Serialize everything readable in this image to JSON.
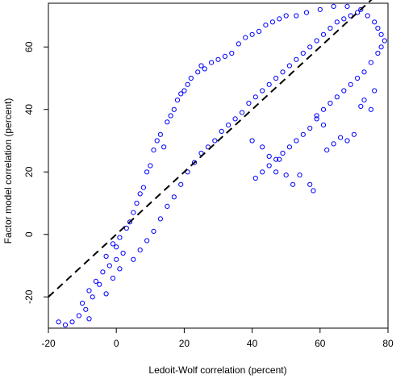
{
  "chart_data": {
    "type": "scatter",
    "title": "",
    "xlabel": "Ledoit-Wolf correlation (percent)",
    "ylabel": "Factor model correlation (percent)",
    "xlim": [
      -20,
      80
    ],
    "ylim": [
      -30,
      74
    ],
    "xticks": [
      -20,
      0,
      20,
      40,
      60,
      80
    ],
    "yticks": [
      -20,
      0,
      20,
      40,
      60
    ],
    "grid": false,
    "legend": "none",
    "point_style": "open-circle",
    "point_color": "#0000ff",
    "reference_line": {
      "style": "dashed",
      "color": "#000000",
      "points": [
        [
          -20,
          -20
        ],
        [
          76,
          76
        ]
      ]
    },
    "series": [
      {
        "values": [
          [
            -17,
            -28
          ],
          [
            -15,
            -29
          ],
          [
            -13,
            -28
          ],
          [
            -11,
            -26
          ],
          [
            -9,
            -24
          ],
          [
            -8,
            -27
          ],
          [
            -10,
            -22
          ],
          [
            -8,
            -18
          ],
          [
            -6,
            -15
          ],
          [
            -4,
            -12
          ],
          [
            -2,
            -10
          ],
          [
            -7,
            -20
          ],
          [
            -5,
            -16
          ],
          [
            -3,
            -19
          ],
          [
            -1,
            -14
          ],
          [
            0,
            -8
          ],
          [
            1,
            -11
          ],
          [
            2,
            -6
          ],
          [
            -3,
            -7
          ],
          [
            -1,
            -3
          ],
          [
            0,
            -4
          ],
          [
            1,
            -1
          ],
          [
            3,
            2
          ],
          [
            4,
            4
          ],
          [
            5,
            7
          ],
          [
            6,
            10
          ],
          [
            7,
            13
          ],
          [
            8,
            15
          ],
          [
            9,
            20
          ],
          [
            10,
            22
          ],
          [
            11,
            27
          ],
          [
            12,
            30
          ],
          [
            13,
            32
          ],
          [
            14,
            28
          ],
          [
            15,
            36
          ],
          [
            16,
            38
          ],
          [
            17,
            40
          ],
          [
            18,
            43
          ],
          [
            19,
            45
          ],
          [
            20,
            46
          ],
          [
            21,
            48
          ],
          [
            22,
            50
          ],
          [
            24,
            52
          ],
          [
            25,
            54
          ],
          [
            26,
            53
          ],
          [
            28,
            55
          ],
          [
            30,
            56
          ],
          [
            32,
            57
          ],
          [
            34,
            58
          ],
          [
            36,
            61
          ],
          [
            38,
            63
          ],
          [
            40,
            64
          ],
          [
            42,
            65
          ],
          [
            44,
            67
          ],
          [
            46,
            68
          ],
          [
            48,
            69
          ],
          [
            50,
            70
          ],
          [
            53,
            70
          ],
          [
            56,
            71
          ],
          [
            60,
            72
          ],
          [
            64,
            73
          ],
          [
            68,
            73
          ],
          [
            72,
            72
          ],
          [
            74,
            70
          ],
          [
            76,
            68
          ],
          [
            77,
            66
          ],
          [
            78,
            64
          ],
          [
            5,
            -8
          ],
          [
            7,
            -5
          ],
          [
            9,
            -2
          ],
          [
            11,
            1
          ],
          [
            13,
            5
          ],
          [
            15,
            9
          ],
          [
            17,
            12
          ],
          [
            19,
            16
          ],
          [
            21,
            20
          ],
          [
            23,
            23
          ],
          [
            25,
            26
          ],
          [
            27,
            28
          ],
          [
            29,
            30
          ],
          [
            31,
            33
          ],
          [
            33,
            35
          ],
          [
            35,
            37
          ],
          [
            37,
            39
          ],
          [
            39,
            42
          ],
          [
            41,
            44
          ],
          [
            43,
            46
          ],
          [
            45,
            48
          ],
          [
            47,
            50
          ],
          [
            49,
            52
          ],
          [
            51,
            54
          ],
          [
            53,
            56
          ],
          [
            55,
            58
          ],
          [
            57,
            60
          ],
          [
            59,
            62
          ],
          [
            61,
            64
          ],
          [
            63,
            66
          ],
          [
            65,
            68
          ],
          [
            67,
            69
          ],
          [
            69,
            70
          ],
          [
            71,
            71
          ],
          [
            40,
            30
          ],
          [
            43,
            28
          ],
          [
            45,
            25
          ],
          [
            47,
            20
          ],
          [
            48,
            24
          ],
          [
            50,
            19
          ],
          [
            52,
            16
          ],
          [
            54,
            19
          ],
          [
            57,
            16
          ],
          [
            58,
            14
          ],
          [
            59,
            37
          ],
          [
            61,
            35
          ],
          [
            62,
            27
          ],
          [
            64,
            29
          ],
          [
            66,
            31
          ],
          [
            68,
            30
          ],
          [
            70,
            32
          ],
          [
            72,
            41
          ],
          [
            75,
            40
          ],
          [
            73,
            43
          ],
          [
            76,
            46
          ],
          [
            78,
            60
          ],
          [
            79,
            62
          ],
          [
            77,
            58
          ],
          [
            75,
            55
          ],
          [
            73,
            52
          ],
          [
            71,
            50
          ],
          [
            69,
            48
          ],
          [
            67,
            46
          ],
          [
            65,
            44
          ],
          [
            63,
            42
          ],
          [
            61,
            40
          ],
          [
            59,
            38
          ],
          [
            57,
            34
          ],
          [
            55,
            32
          ],
          [
            53,
            30
          ],
          [
            51,
            28
          ],
          [
            49,
            26
          ],
          [
            47,
            24
          ],
          [
            45,
            22
          ],
          [
            43,
            20
          ],
          [
            41,
            18
          ]
        ]
      }
    ]
  }
}
